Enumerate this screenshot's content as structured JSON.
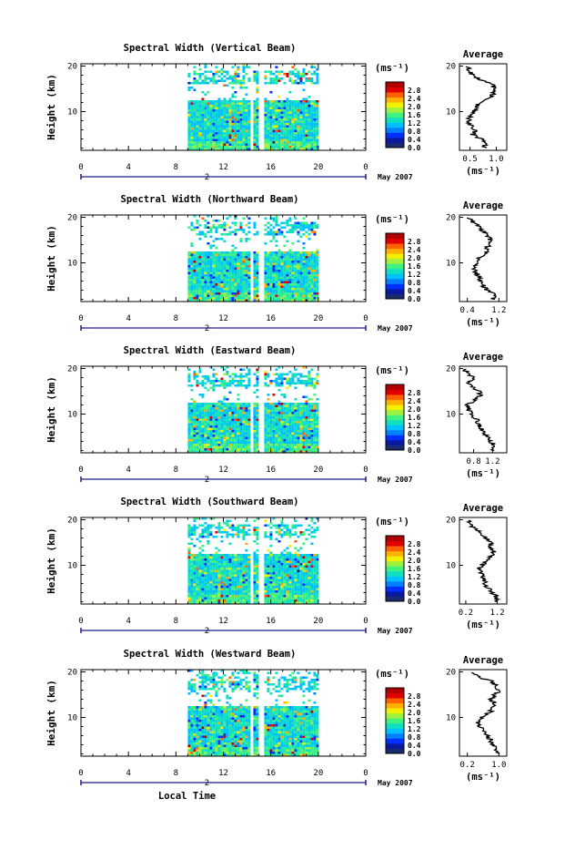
{
  "chart_data": [
    {
      "type": "heatmap",
      "title": "Spectral Width (Vertical Beam)",
      "ylabel": "Height (km)",
      "xticks": [
        "0",
        "4",
        "8",
        "12",
        "16",
        "20",
        "0"
      ],
      "yticks": [
        "20",
        "10"
      ],
      "ylim": [
        1.5,
        20.5
      ],
      "xlim": [
        0,
        24
      ],
      "data_span_hours": [
        9,
        20
      ],
      "gap_hours": [
        14.8,
        15.4
      ],
      "date_marker": "2",
      "date_label": "May 2007",
      "colorbar_unit": "(ms⁻¹)",
      "colorbar_ticks": [
        "2.8",
        "2.4",
        "2.0",
        "1.6",
        "1.2",
        "0.8",
        "0.4",
        "0.0"
      ],
      "colorbar_range": [
        0,
        3.2
      ],
      "average": {
        "title": "Average",
        "xlabel": "(ms⁻¹)",
        "xticks": [
          "0.5",
          "1.0"
        ],
        "yticks": [
          "20",
          "10"
        ],
        "xlim": [
          0.3,
          1.2
        ],
        "height_km": [
          2,
          3,
          4,
          5,
          6,
          7,
          8,
          9,
          10,
          11,
          12,
          13,
          14,
          15,
          16,
          17,
          18,
          19,
          20
        ],
        "width_ms": [
          0.75,
          0.8,
          0.72,
          0.55,
          0.6,
          0.5,
          0.48,
          0.5,
          0.58,
          0.62,
          0.7,
          0.85,
          0.95,
          1.0,
          0.9,
          0.7,
          0.55,
          0.5,
          0.45
        ]
      }
    },
    {
      "type": "heatmap",
      "title": "Spectral Width (Northward Beam)",
      "ylabel": "Height (km)",
      "xticks": [
        "0",
        "4",
        "8",
        "12",
        "16",
        "20",
        "0"
      ],
      "yticks": [
        "20",
        "10"
      ],
      "ylim": [
        1.5,
        20.5
      ],
      "xlim": [
        0,
        24
      ],
      "data_span_hours": [
        9,
        20
      ],
      "gap_hours": [
        14.8,
        15.4
      ],
      "date_marker": "2",
      "date_label": "May 2007",
      "colorbar_unit": "(ms⁻¹)",
      "colorbar_ticks": [
        "2.8",
        "2.4",
        "2.0",
        "1.6",
        "1.2",
        "0.8",
        "0.4",
        "0.0"
      ],
      "colorbar_range": [
        0,
        3.2
      ],
      "average": {
        "title": "Average",
        "xlabel": "(ms⁻¹)",
        "xticks": [
          "0.4",
          "1.2"
        ],
        "yticks": [
          "20",
          "10"
        ],
        "xlim": [
          0.2,
          1.4
        ],
        "height_km": [
          2,
          3,
          4,
          5,
          6,
          7,
          8,
          9,
          10,
          11,
          12,
          13,
          14,
          15,
          16,
          17,
          18,
          19,
          20
        ],
        "width_ms": [
          1.05,
          1.1,
          0.9,
          0.8,
          0.75,
          0.7,
          0.6,
          0.55,
          0.6,
          0.7,
          0.85,
          0.9,
          0.95,
          1.0,
          0.9,
          0.8,
          0.7,
          0.5,
          0.45
        ]
      }
    },
    {
      "type": "heatmap",
      "title": "Spectral Width (Eastward Beam)",
      "ylabel": "Height (km)",
      "xticks": [
        "0",
        "4",
        "8",
        "12",
        "16",
        "20",
        "0"
      ],
      "yticks": [
        "20",
        "10"
      ],
      "ylim": [
        1.5,
        20.5
      ],
      "xlim": [
        0,
        24
      ],
      "data_span_hours": [
        9,
        20
      ],
      "gap_hours": [
        14.8,
        15.4
      ],
      "date_marker": "2",
      "date_label": "May 2007",
      "colorbar_unit": "(ms⁻¹)",
      "colorbar_ticks": [
        "2.8",
        "2.4",
        "2.0",
        "1.6",
        "1.2",
        "0.8",
        "0.4",
        "0.0"
      ],
      "colorbar_range": [
        0,
        3.2
      ],
      "average": {
        "title": "Average",
        "xlabel": "(ms⁻¹)",
        "xticks": [
          "0.8",
          "1.2"
        ],
        "yticks": [
          "20",
          "10"
        ],
        "xlim": [
          0.5,
          1.5
        ],
        "height_km": [
          2,
          3,
          4,
          5,
          6,
          7,
          8,
          9,
          10,
          11,
          12,
          13,
          14,
          15,
          16,
          17,
          18,
          19,
          20
        ],
        "width_ms": [
          1.2,
          1.25,
          1.15,
          1.1,
          1.0,
          0.95,
          0.9,
          0.85,
          0.75,
          0.7,
          0.65,
          0.8,
          0.95,
          0.9,
          0.75,
          0.7,
          0.8,
          0.65,
          0.6
        ]
      }
    },
    {
      "type": "heatmap",
      "title": "Spectral Width (Southward Beam)",
      "ylabel": "Height (km)",
      "xticks": [
        "0",
        "4",
        "8",
        "12",
        "16",
        "20",
        "0"
      ],
      "yticks": [
        "20",
        "10"
      ],
      "ylim": [
        1.5,
        20.5
      ],
      "xlim": [
        0,
        24
      ],
      "data_span_hours": [
        9,
        20
      ],
      "gap_hours": [
        14.8,
        15.4
      ],
      "date_marker": "2",
      "date_label": "May 2007",
      "colorbar_unit": "(ms⁻¹)",
      "colorbar_ticks": [
        "2.8",
        "2.4",
        "2.0",
        "1.6",
        "1.2",
        "0.8",
        "0.4",
        "0.0"
      ],
      "colorbar_range": [
        0,
        3.2
      ],
      "average": {
        "title": "Average",
        "xlabel": "(ms⁻¹)",
        "xticks": [
          "0.2",
          "1.2"
        ],
        "yticks": [
          "20",
          "10"
        ],
        "xlim": [
          0,
          1.5
        ],
        "height_km": [
          2,
          3,
          4,
          5,
          6,
          7,
          8,
          9,
          10,
          11,
          12,
          13,
          14,
          15,
          16,
          17,
          18,
          19,
          20
        ],
        "width_ms": [
          1.15,
          1.2,
          1.0,
          0.9,
          0.8,
          0.75,
          0.7,
          0.6,
          0.7,
          0.85,
          1.0,
          1.1,
          0.95,
          1.0,
          0.85,
          0.7,
          0.5,
          0.35,
          0.3
        ]
      }
    },
    {
      "type": "heatmap",
      "title": "Spectral Width (Westward Beam)",
      "ylabel": "Height (km)",
      "xticks": [
        "0",
        "4",
        "8",
        "12",
        "16",
        "20",
        "0"
      ],
      "yticks": [
        "20",
        "10"
      ],
      "ylim": [
        1.5,
        20.5
      ],
      "xlim": [
        0,
        24
      ],
      "data_span_hours": [
        9,
        20
      ],
      "gap_hours": [
        14.8,
        15.4
      ],
      "date_marker": "2",
      "date_label": "May 2007",
      "colorbar_unit": "(ms⁻¹)",
      "colorbar_ticks": [
        "2.8",
        "2.4",
        "2.0",
        "1.6",
        "1.2",
        "0.8",
        "0.4",
        "0.0"
      ],
      "colorbar_range": [
        0,
        3.2
      ],
      "xlabel": "Local Time",
      "average": {
        "title": "Average",
        "xlabel": "(ms⁻¹)",
        "xticks": [
          "0.2",
          "1.0"
        ],
        "yticks": [
          "20",
          "10"
        ],
        "xlim": [
          0,
          1.2
        ],
        "height_km": [
          2,
          3,
          4,
          5,
          6,
          7,
          8,
          9,
          10,
          11,
          12,
          13,
          14,
          15,
          16,
          17,
          18,
          19,
          20
        ],
        "width_ms": [
          1.0,
          0.95,
          0.85,
          0.8,
          0.7,
          0.6,
          0.5,
          0.45,
          0.55,
          0.75,
          0.85,
          0.9,
          0.8,
          0.9,
          1.0,
          0.95,
          0.8,
          0.45,
          0.35
        ]
      }
    }
  ],
  "colors": {
    "colormap": [
      "#1a2a6e",
      "#0a1aa0",
      "#0030ff",
      "#0080ff",
      "#00c0ff",
      "#10e0c0",
      "#40f080",
      "#a0f040",
      "#f0f000",
      "#ffb000",
      "#ff6000",
      "#e00000",
      "#b00000"
    ],
    "line": "#000000",
    "axis_marker": "#1a1a8c"
  }
}
